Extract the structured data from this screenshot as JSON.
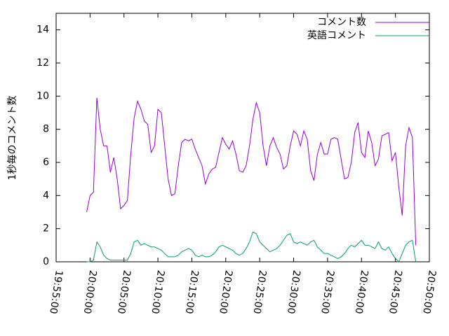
{
  "chart_data": {
    "type": "line",
    "ylabel": "1秒毎のコメント数",
    "x": [
      "19:59:30",
      "20:00:00",
      "20:00:30",
      "20:01:00",
      "20:01:30",
      "20:02:00",
      "20:02:30",
      "20:03:00",
      "20:03:30",
      "20:04:00",
      "20:04:30",
      "20:05:00",
      "20:05:30",
      "20:06:00",
      "20:06:30",
      "20:07:00",
      "20:07:30",
      "20:08:00",
      "20:08:30",
      "20:09:00",
      "20:09:30",
      "20:10:00",
      "20:10:30",
      "20:11:00",
      "20:11:30",
      "20:12:00",
      "20:12:30",
      "20:13:00",
      "20:13:30",
      "20:14:00",
      "20:14:30",
      "20:15:00",
      "20:15:30",
      "20:16:00",
      "20:16:30",
      "20:17:00",
      "20:17:30",
      "20:18:00",
      "20:18:30",
      "20:19:00",
      "20:19:30",
      "20:20:00",
      "20:20:30",
      "20:21:00",
      "20:21:30",
      "20:22:00",
      "20:22:30",
      "20:23:00",
      "20:23:30",
      "20:24:00",
      "20:24:30",
      "20:25:00",
      "20:25:30",
      "20:26:00",
      "20:26:30",
      "20:27:00",
      "20:27:30",
      "20:28:00",
      "20:28:30",
      "20:29:00",
      "20:29:30",
      "20:30:00",
      "20:30:30",
      "20:31:00",
      "20:31:30",
      "20:32:00",
      "20:32:30",
      "20:33:00",
      "20:33:30",
      "20:34:00",
      "20:34:30",
      "20:35:00",
      "20:35:30",
      "20:36:00",
      "20:36:30",
      "20:37:00",
      "20:37:30",
      "20:38:00",
      "20:38:30",
      "20:39:00",
      "20:39:30",
      "20:40:00",
      "20:40:30",
      "20:41:00",
      "20:41:30",
      "20:42:00",
      "20:42:30",
      "20:43:00",
      "20:43:30",
      "20:44:00",
      "20:44:30",
      "20:45:00",
      "20:45:30",
      "20:46:00",
      "20:46:30",
      "20:47:00",
      "20:47:30",
      "20:48:00"
    ],
    "series": [
      {
        "name": "コメント数",
        "color": "#9400d3",
        "values": [
          3.0,
          4.0,
          4.2,
          9.9,
          8.0,
          7.0,
          7.0,
          5.4,
          6.3,
          5.0,
          3.2,
          3.4,
          3.7,
          6.5,
          8.7,
          9.7,
          9.2,
          8.5,
          8.3,
          6.6,
          7.0,
          9.2,
          9.0,
          7.0,
          5.0,
          4.0,
          4.1,
          5.8,
          7.2,
          7.4,
          7.3,
          7.4,
          6.8,
          6.3,
          5.8,
          4.7,
          5.3,
          5.6,
          5.7,
          6.6,
          7.5,
          7.1,
          6.8,
          7.3,
          6.5,
          5.5,
          5.4,
          5.8,
          7.0,
          8.6,
          9.6,
          9.0,
          7.0,
          5.8,
          7.0,
          7.5,
          6.9,
          6.5,
          5.6,
          5.8,
          7.0,
          7.9,
          7.7,
          7.0,
          7.9,
          7.4,
          5.5,
          4.9,
          6.5,
          7.2,
          6.5,
          6.5,
          7.4,
          7.5,
          7.4,
          6.2,
          5.0,
          5.1,
          6.0,
          7.8,
          8.4,
          6.6,
          6.3,
          7.9,
          7.2,
          5.8,
          6.2,
          7.6,
          7.7,
          7.8,
          6.1,
          6.6,
          4.5,
          2.8,
          7.0,
          8.1,
          7.5,
          1.0
        ]
      },
      {
        "name": "英語コメント",
        "color": "#009e73",
        "values": [
          0,
          0,
          0.1,
          1.2,
          0.9,
          0.4,
          0.2,
          0.1,
          0.1,
          0.1,
          0.1,
          0.1,
          0.1,
          0.5,
          1.2,
          1.3,
          1.0,
          1.1,
          1.0,
          0.9,
          0.9,
          0.8,
          0.7,
          0.5,
          0.3,
          0.3,
          0.3,
          0.4,
          0.6,
          0.7,
          0.8,
          0.7,
          0.4,
          0.3,
          0.4,
          0.3,
          0.3,
          0.4,
          0.6,
          0.9,
          1.0,
          0.9,
          0.8,
          0.7,
          0.5,
          0.4,
          0.5,
          0.8,
          1.2,
          1.8,
          1.7,
          1.2,
          1.0,
          0.8,
          0.6,
          0.7,
          0.8,
          1.0,
          1.3,
          1.6,
          1.7,
          1.2,
          1.1,
          1.2,
          1.1,
          1.0,
          1.2,
          1.3,
          0.9,
          0.7,
          0.5,
          0.5,
          0.4,
          0.3,
          0.2,
          0.3,
          0.5,
          0.8,
          1.0,
          0.9,
          1.1,
          1.3,
          1.0,
          1.0,
          0.9,
          0.8,
          1.2,
          0.8,
          0.7,
          0.9,
          0.5,
          0.2,
          0.0,
          0.5,
          1.0,
          1.2,
          1.3,
          0.0
        ]
      }
    ],
    "xlim": [
      "19:55:00",
      "20:50:00"
    ],
    "xticks": [
      "19:55:00",
      "20:00:00",
      "20:05:00",
      "20:10:00",
      "20:15:00",
      "20:20:00",
      "20:25:00",
      "20:30:00",
      "20:35:00",
      "20:40:00",
      "20:45:00",
      "20:50:00"
    ],
    "ylim": [
      0,
      15
    ],
    "yticks": [
      0,
      2,
      4,
      6,
      8,
      10,
      12,
      14
    ],
    "legend": "top-right"
  }
}
